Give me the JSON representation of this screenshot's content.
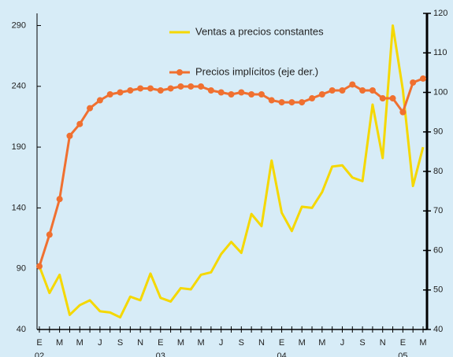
{
  "chart_data": {
    "type": "line",
    "categories": [
      "E",
      null,
      "M",
      null,
      "M",
      null,
      "J",
      null,
      "S",
      null,
      "N",
      null,
      "E",
      null,
      "M",
      null,
      "M",
      null,
      "J",
      null,
      "S",
      null,
      "N",
      null,
      "E",
      null,
      "M",
      null,
      "M",
      null,
      "J",
      null,
      "S",
      null,
      "N",
      null,
      "E",
      null,
      "M"
    ],
    "years": [
      "02",
      "03",
      "04",
      "05"
    ],
    "series": [
      {
        "name": "Ventas a precios constantes",
        "color": "#f5d800",
        "axis": "y",
        "values": [
          92,
          70,
          85,
          52,
          60,
          64,
          55,
          54,
          50,
          67,
          64,
          86,
          66,
          63,
          74,
          73,
          85,
          87,
          102,
          112,
          103,
          135,
          125,
          179,
          136,
          121,
          141,
          140,
          153,
          174,
          175,
          165,
          162,
          225,
          181,
          290,
          237,
          158,
          190
        ]
      },
      {
        "name": "Precios implícitos (eje der.)",
        "color": "#f07030",
        "axis": "y2",
        "values": [
          56,
          64,
          73,
          89,
          92,
          96,
          98,
          99.5,
          100,
          100.5,
          101,
          101,
          100.5,
          101,
          101.5,
          101.5,
          101.5,
          100.5,
          100,
          99.5,
          100,
          99.5,
          99.5,
          98,
          97.5,
          97.5,
          97.5,
          98.5,
          99.5,
          100.5,
          100.5,
          102,
          100.5,
          100.5,
          98.5,
          98.5,
          95,
          102.5,
          103.5
        ]
      }
    ],
    "ylim": [
      40,
      300
    ],
    "yticks": [
      40,
      90,
      140,
      190,
      240,
      290
    ],
    "y2lim": [
      40,
      120
    ],
    "y2ticks": [
      40,
      50,
      60,
      70,
      80,
      90,
      100,
      110,
      120
    ]
  }
}
